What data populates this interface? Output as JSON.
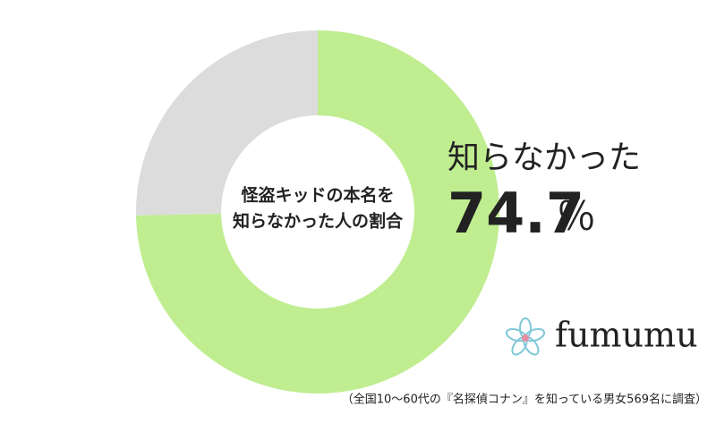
{
  "chart_data": {
    "type": "donut",
    "categories": [
      "知らなかった",
      null
    ],
    "values": [
      74.7,
      25.3
    ],
    "colors": [
      "#bfed90",
      "#dcdcdc"
    ],
    "unit_label": "％",
    "center_label": [
      "怪盗キッドの本名を",
      "知らなかった人の割合"
    ],
    "brand": "fumumu",
    "note": "（全国10～60代の『名探偵コナン』を知っている男女569名に調査）"
  }
}
